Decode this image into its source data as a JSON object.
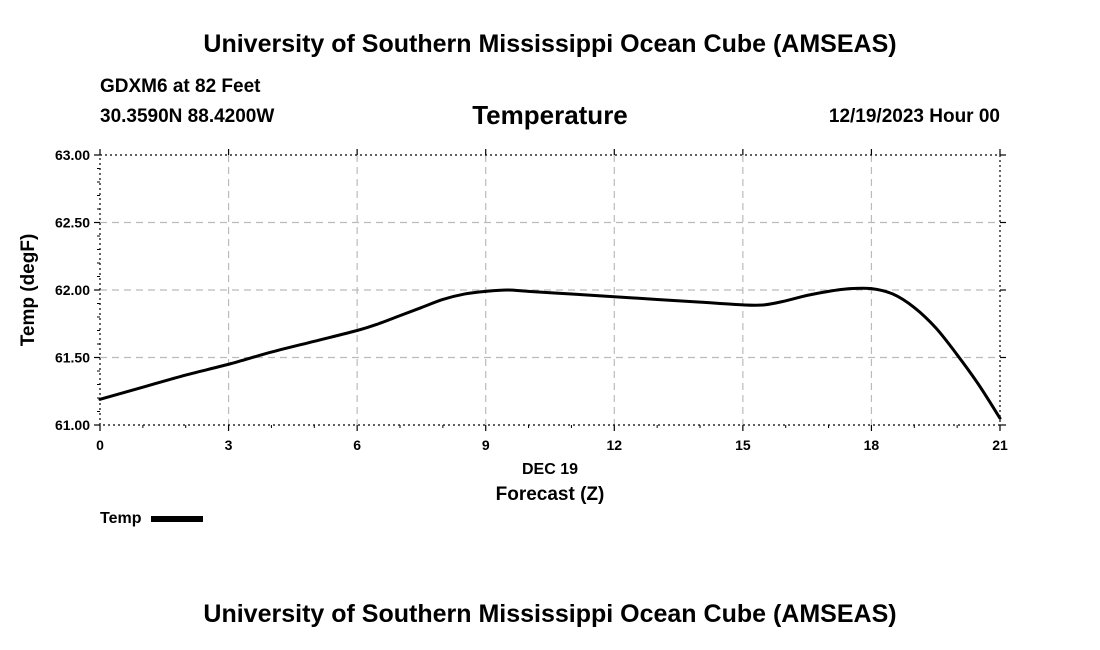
{
  "header": {
    "title_top": "University of Southern Mississippi Ocean Cube (AMSEAS)",
    "title_bottom": "University of Southern Mississippi Ocean Cube (AMSEAS)",
    "station": "GDXM6 at 82 Feet",
    "coords": "30.3590N  88.4200W",
    "chart_title": "Temperature",
    "run_time": "12/19/2023 Hour 00"
  },
  "legend": {
    "label": "Temp"
  },
  "colors": {
    "line": "#000000",
    "grid": "#bbbbbb",
    "background": "#ffffff"
  },
  "chart_data": {
    "type": "line",
    "title": "Temperature",
    "xlabel": "Forecast (Z)",
    "xsublabel": "DEC 19",
    "ylabel": "Temp (degF)",
    "xlim": [
      0,
      21
    ],
    "ylim": [
      61.0,
      63.0
    ],
    "xticks": [
      0,
      3,
      6,
      9,
      12,
      15,
      18,
      21
    ],
    "xtick_labels": [
      "0",
      "3",
      "6",
      "9",
      "12",
      "15",
      "18",
      "21"
    ],
    "yticks": [
      61.0,
      61.5,
      62.0,
      62.5,
      63.0
    ],
    "ytick_labels": [
      "61.00",
      "61.50",
      "62.00",
      "62.50",
      "63.00"
    ],
    "grid": true,
    "legend_position": "bottom-left",
    "series": [
      {
        "name": "Temp",
        "x": [
          0,
          1,
          2,
          3,
          4,
          5,
          6,
          6.5,
          7,
          7.5,
          8,
          8.5,
          9,
          9.5,
          10,
          11,
          12,
          13,
          14,
          15,
          15.5,
          16,
          16.5,
          17,
          17.5,
          18,
          18.5,
          19,
          19.5,
          20,
          20.5,
          21
        ],
        "values": [
          61.19,
          61.28,
          61.37,
          61.45,
          61.54,
          61.62,
          61.7,
          61.75,
          61.81,
          61.87,
          61.93,
          61.97,
          61.99,
          62.0,
          61.99,
          61.97,
          61.95,
          61.93,
          61.91,
          61.89,
          61.89,
          61.92,
          61.96,
          61.99,
          62.01,
          62.01,
          61.97,
          61.87,
          61.72,
          61.52,
          61.3,
          61.05
        ]
      }
    ]
  }
}
